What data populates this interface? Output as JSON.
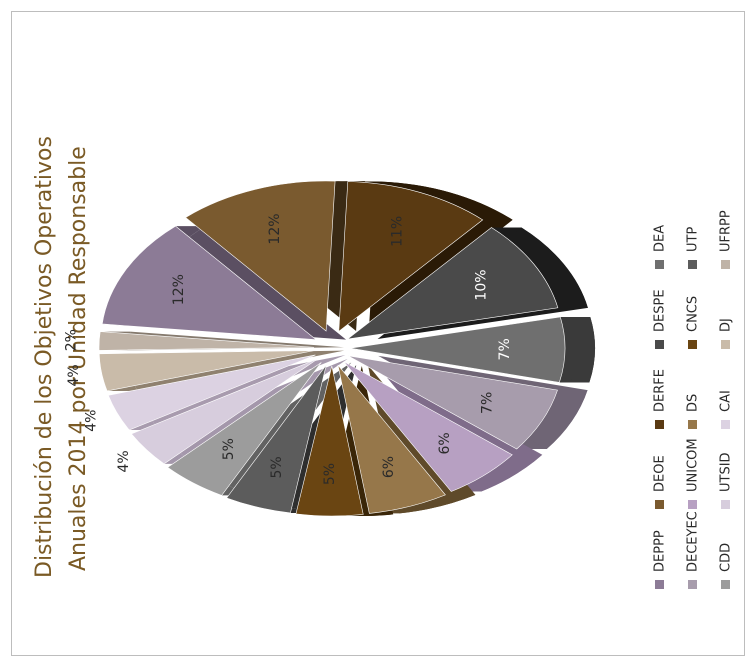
{
  "chart_data": {
    "type": "pie",
    "title": "Distribución de los Objetivos Operativos",
    "subtitle": "Anuales 2014 por Unidad Responsable",
    "slices": [
      {
        "label": "DEPPP",
        "value": 12,
        "color": "#8c7b96",
        "side": "#5b4f62",
        "percent_label": "12%",
        "text_color": "#2a2a2a"
      },
      {
        "label": "DEOE",
        "value": 12,
        "color": "#7a5a2f",
        "side": "#3a2a14",
        "percent_label": "12%",
        "text_color": "#2a2a2a"
      },
      {
        "label": "DERFE",
        "value": 11,
        "color": "#5a3a12",
        "side": "#2a1a06",
        "percent_label": "11%",
        "text_color": "#2a2a2a"
      },
      {
        "label": "DESPE",
        "value": 10,
        "color": "#4a4a4a",
        "side": "#1c1c1c",
        "percent_label": "10%",
        "text_color": "#ffffff"
      },
      {
        "label": "DEA",
        "value": 7,
        "color": "#6f6f6f",
        "side": "#3a3a3a",
        "percent_label": "7%",
        "text_color": "#ffffff"
      },
      {
        "label": "DECEYEC",
        "value": 7,
        "color": "#a79cac",
        "side": "#6f6575",
        "percent_label": "7%",
        "text_color": "#2a2a2a"
      },
      {
        "label": "UNICOM",
        "value": 6,
        "color": "#b7a0c2",
        "side": "#7f6c8a",
        "percent_label": "6%",
        "text_color": "#2a2a2a"
      },
      {
        "label": "DS",
        "value": 6,
        "color": "#96774a",
        "side": "#5f4a2a",
        "percent_label": "6%",
        "text_color": "#2a2a2a"
      },
      {
        "label": "CNCS",
        "value": 5,
        "color": "#6a4512",
        "side": "#3a2608",
        "percent_label": "5%",
        "text_color": "#2a2a2a"
      },
      {
        "label": "UTP",
        "value": 5,
        "color": "#5c5c5c",
        "side": "#2e2e2e",
        "percent_label": "5%",
        "text_color": "#2a2a2a"
      },
      {
        "label": "CDD",
        "value": 5,
        "color": "#9c9c9c",
        "side": "#626262",
        "percent_label": "5%",
        "text_color": "#2a2a2a"
      },
      {
        "label": "UTSID",
        "value": 4,
        "color": "#d7cddd",
        "side": "#a497ab",
        "percent_label": "4%",
        "text_color": "#2a2a2a"
      },
      {
        "label": "CAI",
        "value": 4,
        "color": "#dcd2e2",
        "side": "#a89bae",
        "percent_label": "4%",
        "text_color": "#2a2a2a"
      },
      {
        "label": "DJ",
        "value": 4,
        "color": "#c9bba9",
        "side": "#8f816f",
        "percent_label": "4%",
        "text_color": "#2a2a2a"
      },
      {
        "label": "UFRPP",
        "value": 2,
        "color": "#bfb3a7",
        "side": "#857a6e",
        "percent_label": "2%",
        "text_color": "#2a2a2a"
      }
    ],
    "legend": {
      "placement": "bottom (rotated)",
      "columns": [
        [
          "DEPPP",
          "DECEYEC",
          "CDD"
        ],
        [
          "DEOE",
          "UNICOM",
          "UTSID"
        ],
        [
          "DERFE",
          "DS",
          "CAI"
        ],
        [
          "DESPE",
          "CNCS",
          "DJ"
        ],
        [
          "DEA",
          "UTP",
          "UFRPP"
        ]
      ]
    },
    "exploded": true,
    "three_d": true
  }
}
